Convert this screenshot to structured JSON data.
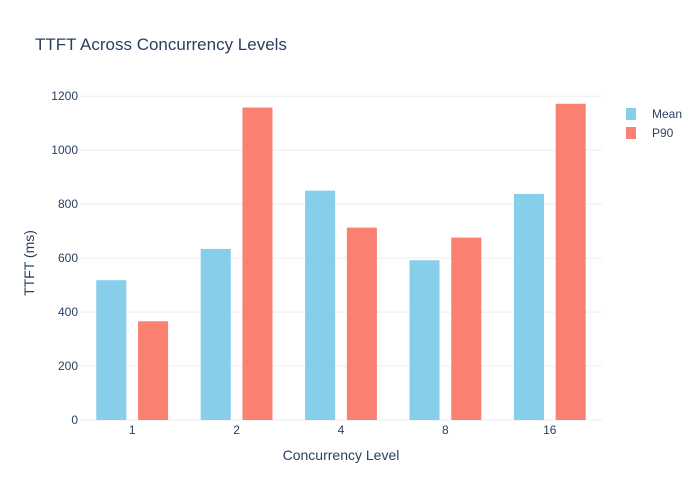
{
  "chart_data": {
    "type": "bar",
    "title": "TTFT Across Concurrency Levels",
    "xlabel": "Concurrency Level",
    "ylabel": "TTFT (ms)",
    "categories": [
      "1",
      "2",
      "4",
      "8",
      "16"
    ],
    "series": [
      {
        "name": "Mean",
        "color": "#87ceeb",
        "values": [
          518,
          634,
          850,
          592,
          838
        ]
      },
      {
        "name": "P90",
        "color": "#fa8072",
        "values": [
          366,
          1158,
          713,
          676,
          1172
        ]
      }
    ],
    "ylim": [
      0,
      1260
    ],
    "yticks": [
      0,
      200,
      400,
      600,
      800,
      1000,
      1200
    ],
    "grid": true,
    "legend_position": "top-right"
  }
}
